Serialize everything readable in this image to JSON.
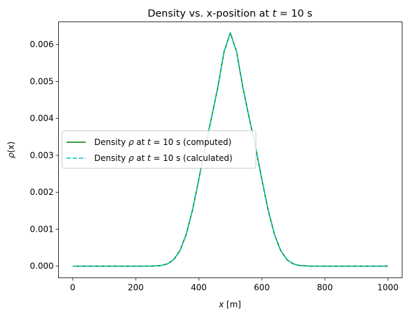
{
  "chart_data": {
    "type": "line",
    "title": "Density vs. x-position at t = 10 s",
    "title_parts": {
      "prefix": "Density vs. x-position at ",
      "var": "t",
      "suffix": " = 10 s"
    },
    "xlabel": "x [m]",
    "xlabel_parts": {
      "var": "x",
      "suffix": " [m]"
    },
    "ylabel": "ρ(x)",
    "ylabel_parts": {
      "var": "ρ",
      "suffix": "(x)"
    },
    "xlim": [
      -45,
      1045
    ],
    "ylim": [
      -0.000315,
      0.006615
    ],
    "xticks": [
      0,
      200,
      400,
      600,
      800,
      1000
    ],
    "xtick_labels": [
      "0",
      "200",
      "400",
      "600",
      "800",
      "1000"
    ],
    "yticks": [
      0,
      0.001,
      0.002,
      0.003,
      0.004,
      0.005,
      0.006
    ],
    "ytick_labels": [
      "0.000",
      "0.001",
      "0.002",
      "0.003",
      "0.004",
      "0.005",
      "0.006"
    ],
    "grid": false,
    "legend_position": "center-left",
    "series": [
      {
        "name": "Density ρ at t = 10 s (computed)",
        "legend_parts": {
          "prefix": "Density ",
          "var1": "ρ",
          "mid": " at ",
          "var2": "t",
          "suffix": " = 10 s (computed)"
        },
        "color": "#008000",
        "style": "solid",
        "x": [
          0,
          100,
          200,
          250,
          280,
          300,
          320,
          340,
          360,
          380,
          400,
          420,
          440,
          460,
          480,
          500,
          520,
          540,
          560,
          580,
          600,
          620,
          640,
          660,
          680,
          700,
          720,
          750,
          800,
          900,
          1000
        ],
        "y": [
          0,
          0,
          0,
          3e-06,
          1.8e-05,
          6.1e-05,
          0.000173,
          0.000416,
          0.00086,
          0.00152,
          0.00235,
          0.00322,
          0.00401,
          0.00483,
          0.0058,
          0.00632,
          0.0058,
          0.00483,
          0.00401,
          0.00322,
          0.00235,
          0.00152,
          0.00086,
          0.000416,
          0.000173,
          6.1e-05,
          1.8e-05,
          3e-06,
          0,
          0,
          0
        ]
      },
      {
        "name": "Density ρ at t = 10 s (calculated)",
        "legend_parts": {
          "prefix": "Density ",
          "var1": "ρ",
          "mid": " at ",
          "var2": "t",
          "suffix": " = 10 s (calculated)"
        },
        "color": "#00bfbf",
        "style": "dashed",
        "x": [
          0,
          100,
          200,
          250,
          280,
          300,
          320,
          340,
          360,
          380,
          400,
          420,
          440,
          460,
          480,
          500,
          520,
          540,
          560,
          580,
          600,
          620,
          640,
          660,
          680,
          700,
          720,
          750,
          800,
          900,
          1000
        ],
        "y": [
          0,
          0,
          0,
          3e-06,
          1.8e-05,
          6.1e-05,
          0.000173,
          0.000416,
          0.00086,
          0.00152,
          0.00235,
          0.00322,
          0.00401,
          0.00483,
          0.0058,
          0.00632,
          0.0058,
          0.00483,
          0.00401,
          0.00322,
          0.00235,
          0.00152,
          0.00086,
          0.000416,
          0.000173,
          6.1e-05,
          1.8e-05,
          3e-06,
          0,
          0,
          0
        ]
      }
    ]
  }
}
